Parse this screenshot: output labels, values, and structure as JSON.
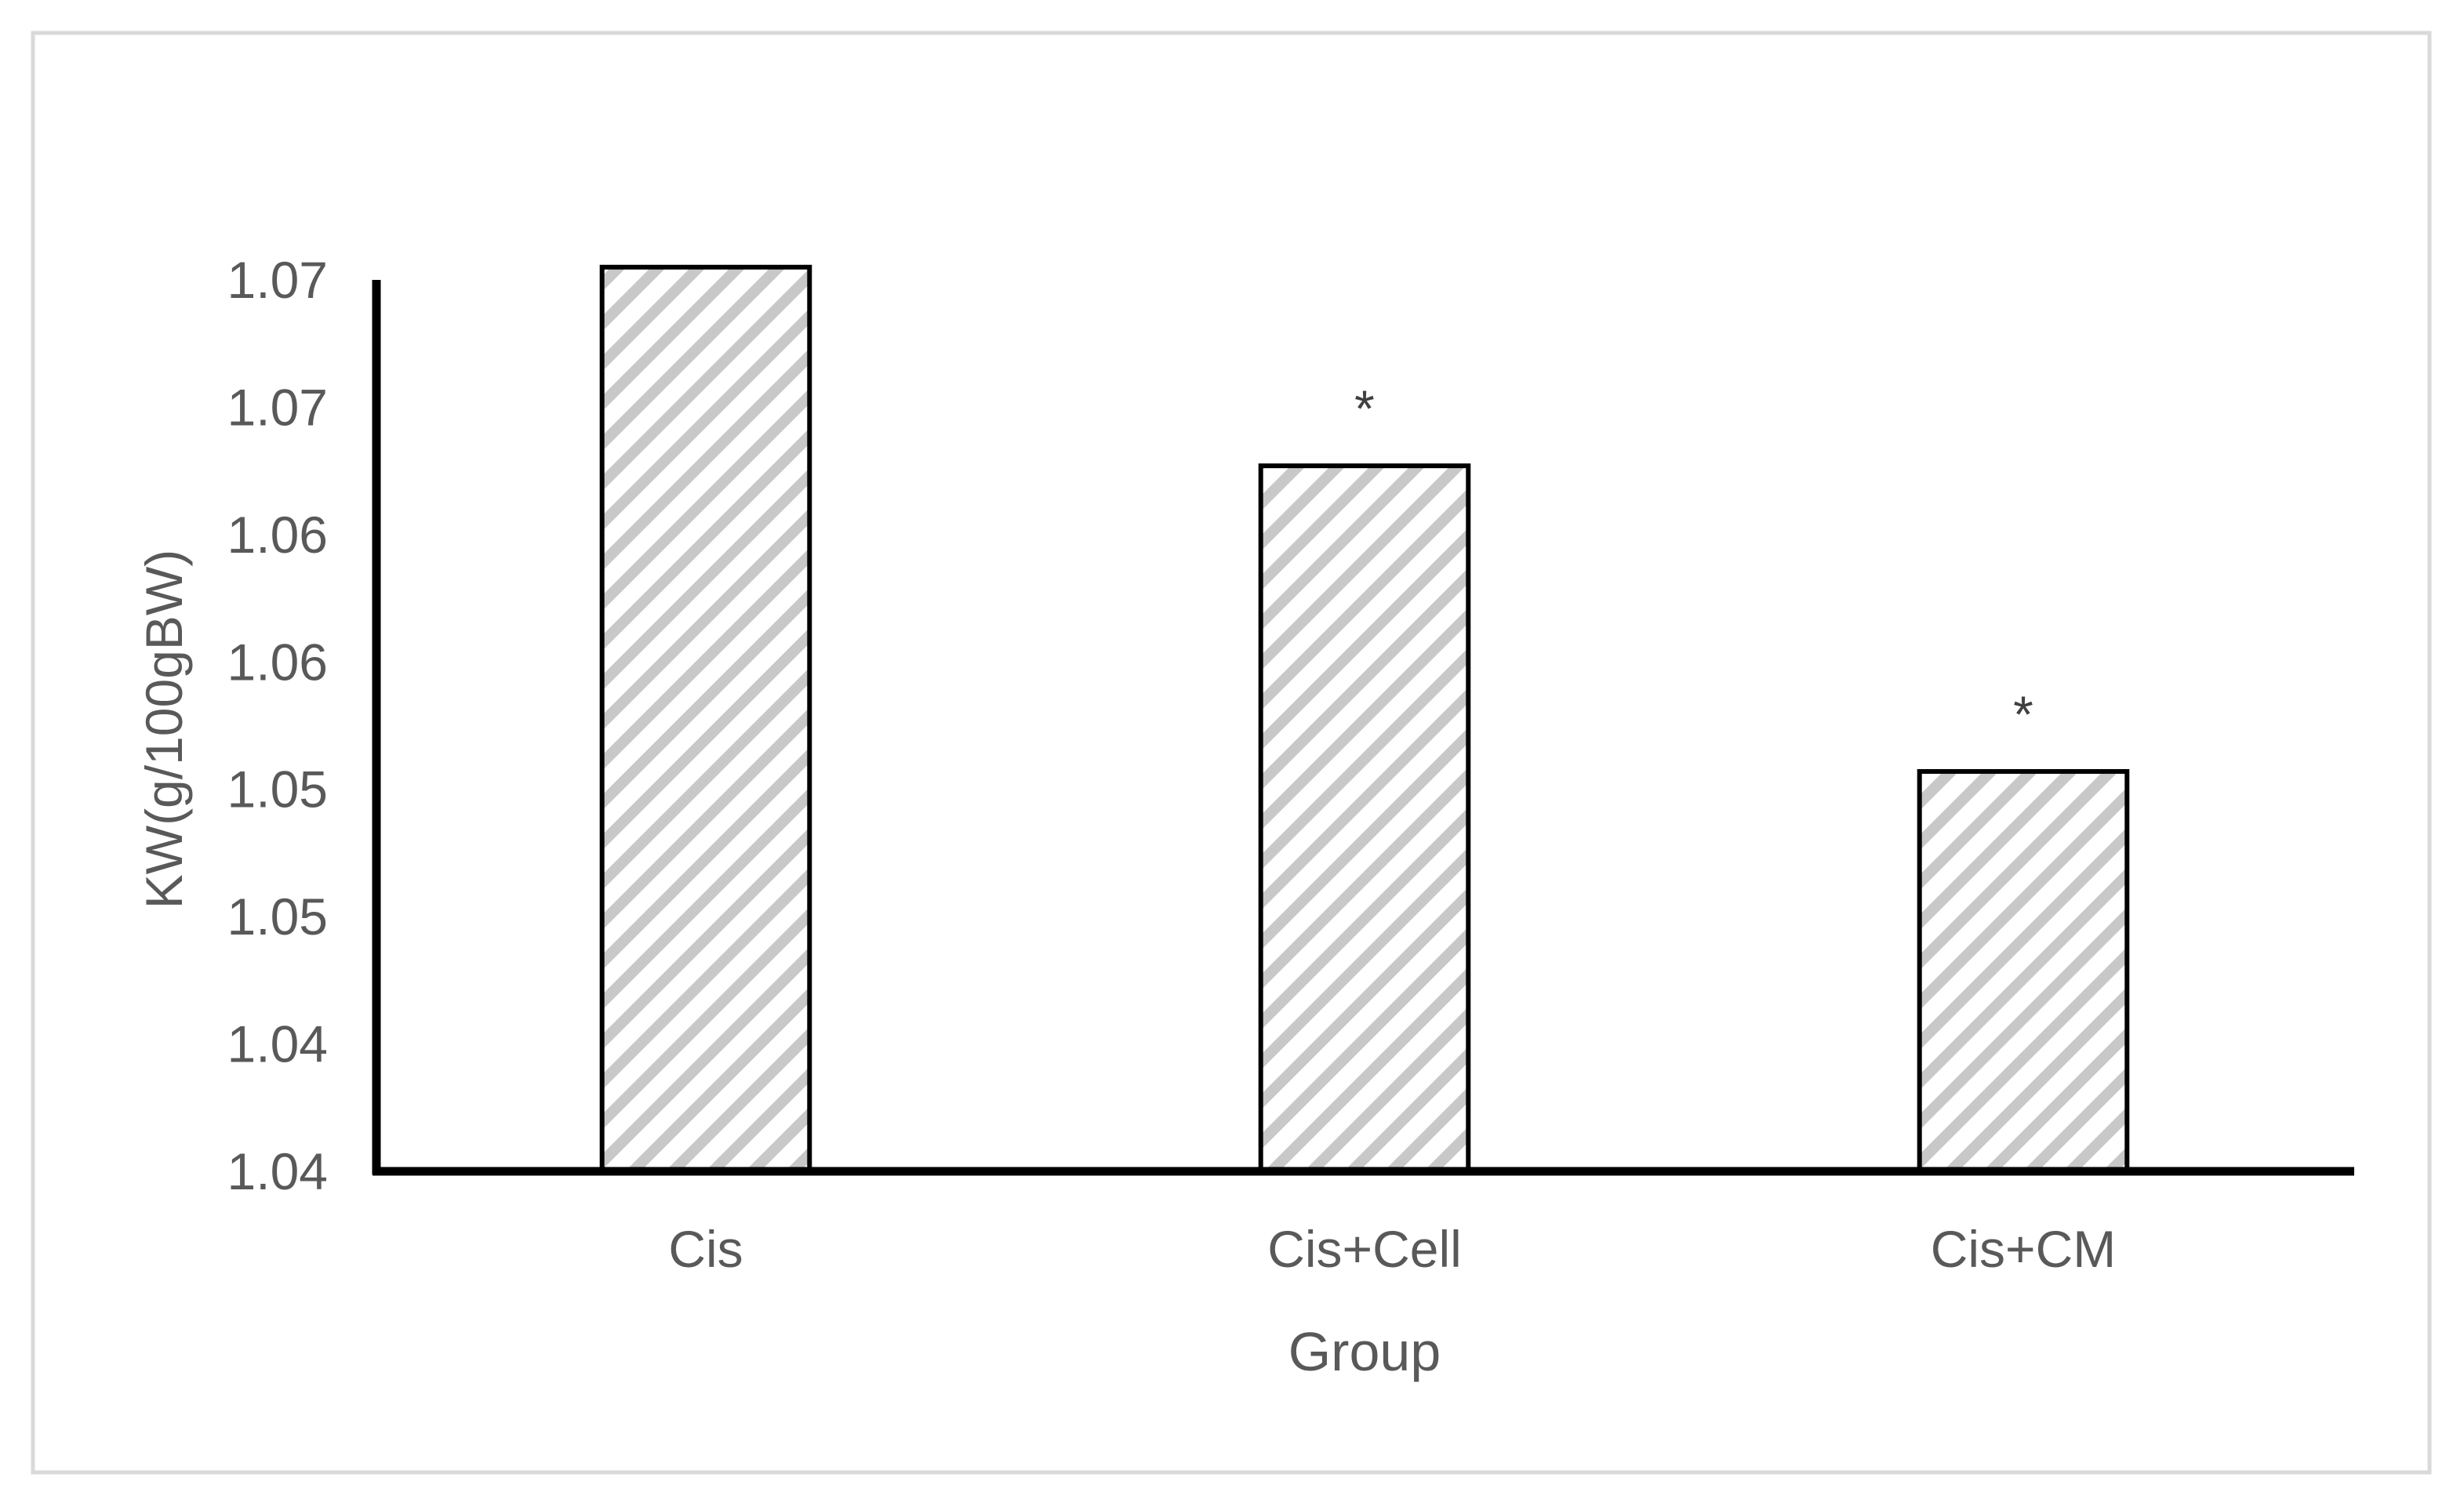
{
  "chart_data": {
    "type": "bar",
    "categories": [
      "Cis",
      "Cis+Cell",
      "Cis+CM"
    ],
    "values": [
      1.0705,
      1.0627,
      1.0507
    ],
    "annotations": [
      "",
      "*",
      "*"
    ],
    "xlabel": "Group",
    "ylabel": "KW(g/100gBW)",
    "ylim": [
      1.035,
      1.07
    ],
    "yticks": [
      1.035,
      1.04,
      1.045,
      1.05,
      1.055,
      1.06,
      1.065,
      1.07
    ],
    "ytick_labels": [
      "1.04",
      "1.04",
      "1.05",
      "1.05",
      "1.06",
      "1.06",
      "1.07",
      "1.07"
    ],
    "grid": false,
    "legend": "none",
    "bar_fill": "diagonal hatch",
    "colors": {
      "hatch": "#c8c8c8",
      "bar_outline": "#000000",
      "axis": "#000000",
      "tick_text": "#595959",
      "frame": "#d9d9d9"
    }
  }
}
